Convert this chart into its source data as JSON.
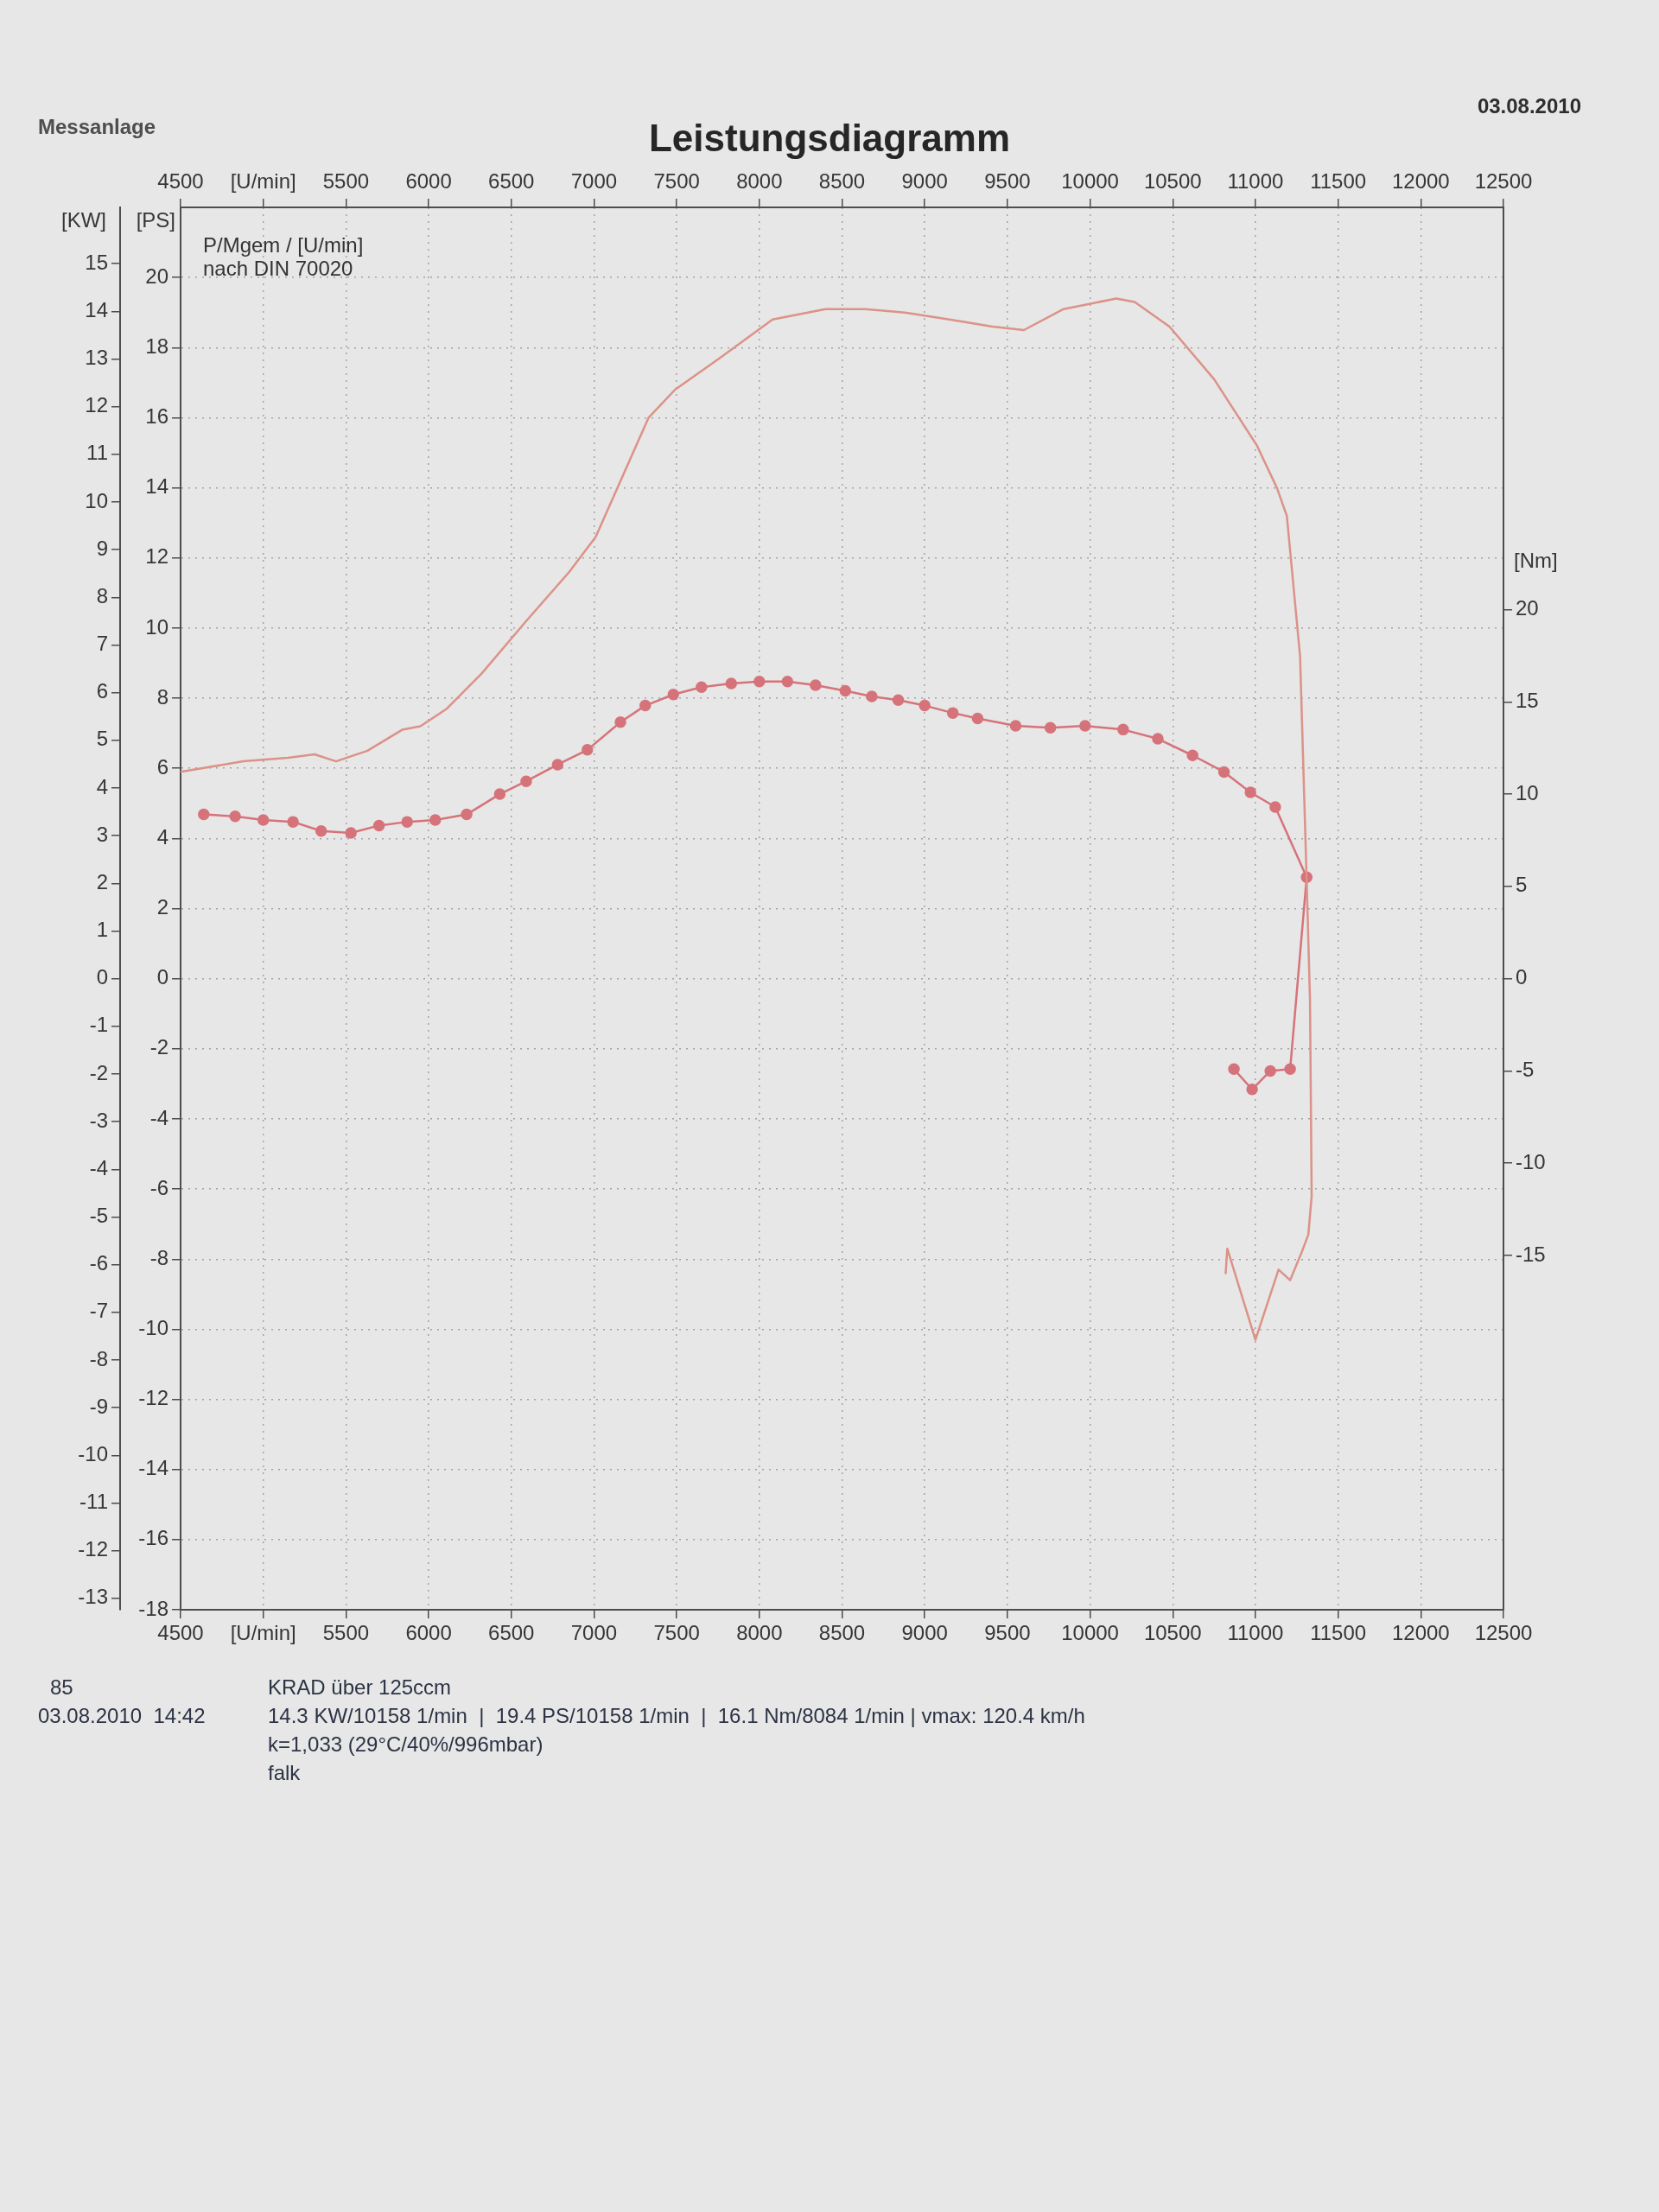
{
  "chart_data": {
    "type": "line",
    "title": "Leistungsdiagramm",
    "ylabel": "[PS]",
    "y2label": "[Nm]",
    "y3label": "[KW]",
    "xlim": [
      4500,
      12500
    ],
    "xticks": [
      4500,
      {
        "value": 5000,
        "label": "[U/min]"
      },
      5500,
      6000,
      6500,
      7000,
      7500,
      8000,
      8500,
      9000,
      9500,
      10000,
      10500,
      11000,
      11500,
      12000,
      12500
    ],
    "x2lim": [
      4500,
      12500
    ],
    "x2ticks": [
      4500,
      {
        "value": 5000,
        "label": "[U/min]"
      },
      5500,
      6000,
      6500,
      7000,
      7500,
      8000,
      8500,
      9000,
      9500,
      10000,
      10500,
      11000,
      11500,
      12000,
      12500
    ],
    "ylim": [
      -18,
      22
    ],
    "yticks": [
      -18,
      -16,
      -14,
      -12,
      -10,
      -8,
      -6,
      -4,
      -2,
      0,
      2,
      4,
      6,
      8,
      10,
      12,
      14,
      16,
      18,
      20
    ],
    "y2lim": [
      -34.2,
      41.8
    ],
    "y2ticks": [
      -15,
      -10,
      -5,
      0,
      5,
      10,
      15,
      20
    ],
    "y3lim": [
      -13.24,
      16.18
    ],
    "y3ticks": [
      -13,
      -12,
      -11,
      -10,
      -9,
      -8,
      -7,
      -6,
      -5,
      -4,
      -3,
      -2,
      -1,
      0,
      1,
      2,
      3,
      4,
      5,
      6,
      7,
      8,
      9,
      10,
      11,
      12,
      13,
      14,
      15
    ],
    "grid": true,
    "series": [
      {
        "color": "#dc9288",
        "marker": "none",
        "x": [
          4500,
          4880,
          5150,
          5310,
          5440,
          5630,
          5840,
          5950,
          6110,
          6320,
          6590,
          6850,
          7010,
          7170,
          7330,
          7490,
          7760,
          8080,
          8400,
          8640,
          8880,
          9150,
          9410,
          9600,
          9840,
          10158,
          10270,
          10480,
          10750,
          11010,
          11130,
          11190,
          11270,
          11305,
          11330,
          11340,
          11320,
          11280,
          11210,
          11140,
          11000,
          10830,
          10820
        ],
        "values": [
          5.9,
          6.2,
          6.3,
          6.4,
          6.2,
          6.5,
          7.1,
          7.2,
          7.7,
          8.7,
          10.2,
          11.6,
          12.6,
          14.3,
          16.0,
          16.8,
          17.7,
          18.8,
          19.1,
          19.1,
          19.0,
          18.8,
          18.6,
          18.5,
          19.1,
          19.4,
          19.3,
          18.6,
          17.1,
          15.2,
          14.0,
          13.2,
          9.2,
          3.6,
          -0.6,
          -6.2,
          -7.3,
          -7.8,
          -8.6,
          -8.3,
          -10.3,
          -7.7,
          -8.4
        ]
      },
      {
        "color": "#d6737a",
        "marker": "circle",
        "axis": "y2",
        "x": [
          4640,
          4830,
          5000,
          5180,
          5350,
          5530,
          5700,
          5870,
          6040,
          6230,
          6430,
          6590,
          6780,
          6960,
          7160,
          7310,
          7480,
          7650,
          7830,
          8000,
          8170,
          8340,
          8520,
          8680,
          8840,
          9000,
          9170,
          9320,
          9550,
          9760,
          9970,
          10200,
          10410,
          10620,
          10810,
          10970,
          11120,
          11310,
          11210,
          11090,
          10980,
          10870
        ],
        "values": [
          8.9,
          8.8,
          8.6,
          8.5,
          8.0,
          7.9,
          8.3,
          8.5,
          8.6,
          8.9,
          10.0,
          10.7,
          11.6,
          12.4,
          13.9,
          14.8,
          15.4,
          15.8,
          16.0,
          16.1,
          16.1,
          15.9,
          15.6,
          15.3,
          15.1,
          14.8,
          14.4,
          14.1,
          13.7,
          13.6,
          13.7,
          13.5,
          13.0,
          12.1,
          11.2,
          10.1,
          9.3,
          5.5,
          -4.9,
          -5.0,
          -6.0,
          -4.9
        ]
      }
    ],
    "annotations": [
      "Messanlage",
      "03.08.2010",
      "P/Mgem / [U/min]",
      "nach DIN 70020",
      "85",
      "03.08.2010  14:42",
      "KRAD über 125ccm",
      "14.3 KW/10158 1/min  |  19.4 PS/10158 1/min  |  16.1 Nm/8084 1/min | vmax: 120.4 km/h",
      "k=1,033 (29°C/40%/996mbar)",
      "falk"
    ]
  }
}
